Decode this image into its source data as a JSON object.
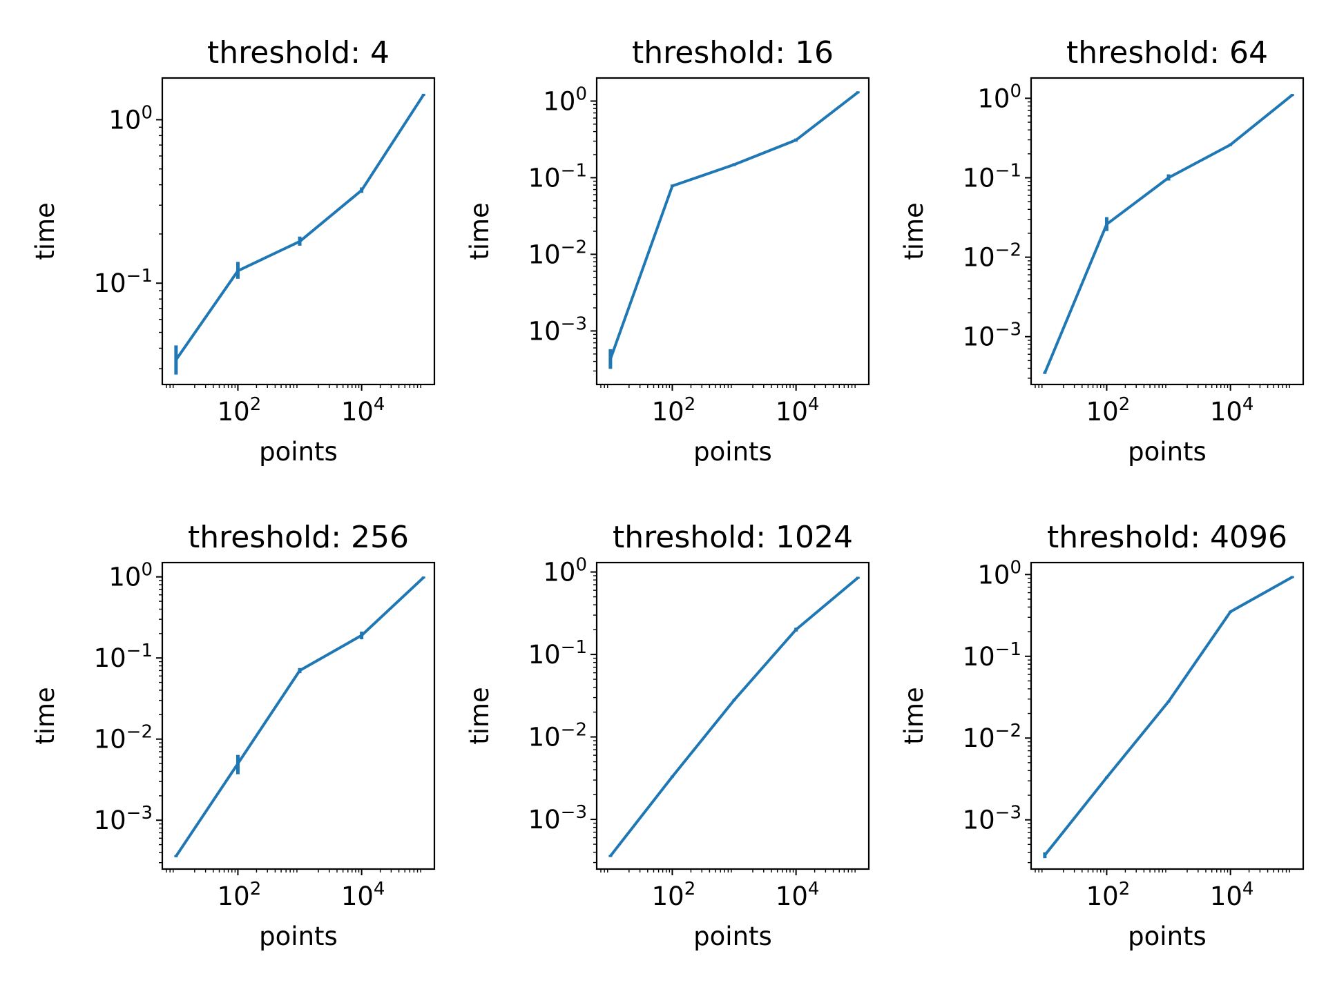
{
  "figure": {
    "line_color": "#1f77b4"
  },
  "chart_data": [
    {
      "type": "line",
      "title": "threshold: 4",
      "xlabel": "points",
      "ylabel": "time",
      "xscale": "log",
      "yscale": "log",
      "xlim": [
        6,
        150000
      ],
      "ylim": [
        0.024,
        1.8
      ],
      "x_major_ticks": [
        {
          "value": 100,
          "label": "10",
          "exp": "2"
        },
        {
          "value": 10000,
          "label": "10",
          "exp": "4"
        }
      ],
      "y_major_ticks": [
        {
          "value": 0.1,
          "label": "10",
          "exp": "−1"
        },
        {
          "value": 1,
          "label": "10",
          "exp": "0"
        }
      ],
      "grid": false,
      "series": [
        {
          "x": [
            10,
            100,
            1000,
            10000,
            100000
          ],
          "y": [
            0.034,
            0.119,
            0.18,
            0.37,
            1.42
          ],
          "err_low": [
            0.028,
            0.108,
            0.172,
            0.362,
            1.42
          ],
          "err_high": [
            0.041,
            0.133,
            0.19,
            0.38,
            1.42
          ]
        }
      ]
    },
    {
      "type": "line",
      "title": "threshold: 16",
      "xlabel": "points",
      "ylabel": "time",
      "xscale": "log",
      "yscale": "log",
      "xlim": [
        6,
        150000
      ],
      "ylim": [
        0.0002,
        2.0
      ],
      "x_major_ticks": [
        {
          "value": 100,
          "label": "10",
          "exp": "2"
        },
        {
          "value": 10000,
          "label": "10",
          "exp": "4"
        }
      ],
      "y_major_ticks": [
        {
          "value": 0.001,
          "label": "10",
          "exp": "−3"
        },
        {
          "value": 0.01,
          "label": "10",
          "exp": "−2"
        },
        {
          "value": 0.1,
          "label": "10",
          "exp": "−1"
        },
        {
          "value": 1,
          "label": "10",
          "exp": "0"
        }
      ],
      "grid": false,
      "series": [
        {
          "x": [
            10,
            100,
            1000,
            10000,
            100000
          ],
          "y": [
            0.00043,
            0.078,
            0.148,
            0.31,
            1.3
          ],
          "err_low": [
            0.00033,
            0.078,
            0.146,
            0.305,
            1.3
          ],
          "err_high": [
            0.00056,
            0.079,
            0.15,
            0.315,
            1.3
          ]
        }
      ]
    },
    {
      "type": "line",
      "title": "threshold: 64",
      "xlabel": "points",
      "ylabel": "time",
      "xscale": "log",
      "yscale": "log",
      "xlim": [
        6,
        150000
      ],
      "ylim": [
        0.00025,
        1.8
      ],
      "x_major_ticks": [
        {
          "value": 100,
          "label": "10",
          "exp": "2"
        },
        {
          "value": 10000,
          "label": "10",
          "exp": "4"
        }
      ],
      "y_major_ticks": [
        {
          "value": 0.001,
          "label": "10",
          "exp": "−3"
        },
        {
          "value": 0.01,
          "label": "10",
          "exp": "−2"
        },
        {
          "value": 0.1,
          "label": "10",
          "exp": "−1"
        },
        {
          "value": 1,
          "label": "10",
          "exp": "0"
        }
      ],
      "grid": false,
      "series": [
        {
          "x": [
            10,
            100,
            1000,
            10000,
            100000
          ],
          "y": [
            0.00035,
            0.026,
            0.1,
            0.26,
            1.1
          ],
          "err_low": [
            0.00035,
            0.022,
            0.095,
            0.258,
            1.1
          ],
          "err_high": [
            0.00035,
            0.031,
            0.107,
            0.262,
            1.1
          ]
        }
      ]
    },
    {
      "type": "line",
      "title": "threshold: 256",
      "xlabel": "points",
      "ylabel": "time",
      "xscale": "log",
      "yscale": "log",
      "xlim": [
        6,
        150000
      ],
      "ylim": [
        0.00025,
        1.5
      ],
      "x_major_ticks": [
        {
          "value": 100,
          "label": "10",
          "exp": "2"
        },
        {
          "value": 10000,
          "label": "10",
          "exp": "4"
        }
      ],
      "y_major_ticks": [
        {
          "value": 0.001,
          "label": "10",
          "exp": "−3"
        },
        {
          "value": 0.01,
          "label": "10",
          "exp": "−2"
        },
        {
          "value": 0.1,
          "label": "10",
          "exp": "−1"
        },
        {
          "value": 1,
          "label": "10",
          "exp": "0"
        }
      ],
      "grid": false,
      "series": [
        {
          "x": [
            10,
            100,
            1000,
            10000,
            100000
          ],
          "y": [
            0.00036,
            0.005,
            0.07,
            0.19,
            0.98
          ],
          "err_low": [
            0.00036,
            0.0038,
            0.067,
            0.175,
            0.98
          ],
          "err_high": [
            0.00036,
            0.0062,
            0.073,
            0.205,
            0.98
          ]
        }
      ]
    },
    {
      "type": "line",
      "title": "threshold: 1024",
      "xlabel": "points",
      "ylabel": "time",
      "xscale": "log",
      "yscale": "log",
      "xlim": [
        6,
        150000
      ],
      "ylim": [
        0.00025,
        1.3
      ],
      "x_major_ticks": [
        {
          "value": 100,
          "label": "10",
          "exp": "2"
        },
        {
          "value": 10000,
          "label": "10",
          "exp": "4"
        }
      ],
      "y_major_ticks": [
        {
          "value": 0.001,
          "label": "10",
          "exp": "−3"
        },
        {
          "value": 0.01,
          "label": "10",
          "exp": "−2"
        },
        {
          "value": 0.1,
          "label": "10",
          "exp": "−1"
        },
        {
          "value": 1,
          "label": "10",
          "exp": "0"
        }
      ],
      "grid": false,
      "series": [
        {
          "x": [
            10,
            100,
            1000,
            10000,
            100000
          ],
          "y": [
            0.00036,
            0.0033,
            0.028,
            0.2,
            0.85
          ],
          "err_low": [
            0.00036,
            0.0033,
            0.028,
            0.195,
            0.85
          ],
          "err_high": [
            0.00036,
            0.0033,
            0.028,
            0.205,
            0.85
          ]
        }
      ]
    },
    {
      "type": "line",
      "title": "threshold: 4096",
      "xlabel": "points",
      "ylabel": "time",
      "xscale": "log",
      "yscale": "log",
      "xlim": [
        6,
        150000
      ],
      "ylim": [
        0.00025,
        1.4
      ],
      "x_major_ticks": [
        {
          "value": 100,
          "label": "10",
          "exp": "2"
        },
        {
          "value": 10000,
          "label": "10",
          "exp": "4"
        }
      ],
      "y_major_ticks": [
        {
          "value": 0.001,
          "label": "10",
          "exp": "−3"
        },
        {
          "value": 0.01,
          "label": "10",
          "exp": "−2"
        },
        {
          "value": 0.1,
          "label": "10",
          "exp": "−1"
        },
        {
          "value": 1,
          "label": "10",
          "exp": "0"
        }
      ],
      "grid": false,
      "series": [
        {
          "x": [
            10,
            100,
            1000,
            10000,
            100000
          ],
          "y": [
            0.00037,
            0.0033,
            0.028,
            0.35,
            0.93
          ],
          "err_low": [
            0.00035,
            0.0033,
            0.028,
            0.35,
            0.93
          ],
          "err_high": [
            0.00039,
            0.0033,
            0.028,
            0.35,
            0.93
          ]
        }
      ]
    }
  ]
}
